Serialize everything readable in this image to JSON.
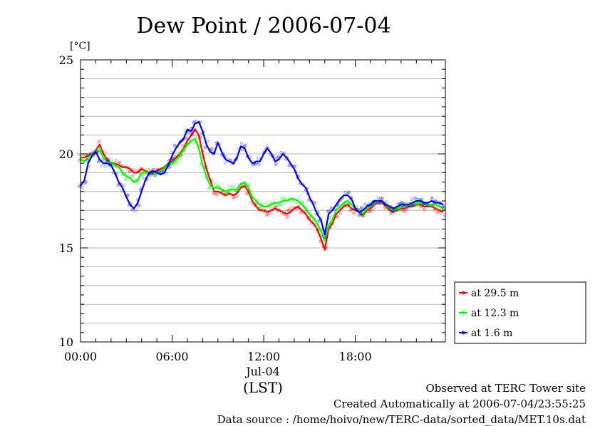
{
  "chart_data": {
    "type": "line",
    "title": "Dew Point / 2006-07-04",
    "ylabel": "[°C]",
    "xlabel": "(LST)",
    "date_label": "Jul-04",
    "ylim": [
      10,
      25
    ],
    "yticks": [
      10,
      15,
      20,
      25
    ],
    "xlim": [
      0,
      23.9
    ],
    "xticks": [
      {
        "hour": 0,
        "label": "00:00"
      },
      {
        "hour": 6,
        "label": "06:00"
      },
      {
        "hour": 12,
        "label": "12:00"
      },
      {
        "hour": 18,
        "label": "18:00"
      }
    ],
    "grid": true,
    "legend_position": "right",
    "x": [
      0,
      0.25,
      0.5,
      0.75,
      1,
      1.25,
      1.5,
      1.75,
      2,
      2.25,
      2.5,
      2.75,
      3,
      3.25,
      3.5,
      3.75,
      4,
      4.25,
      4.5,
      4.75,
      5,
      5.25,
      5.5,
      5.75,
      6,
      6.25,
      6.5,
      6.75,
      7,
      7.25,
      7.5,
      7.75,
      8,
      8.25,
      8.5,
      8.75,
      9,
      9.25,
      9.5,
      9.75,
      10,
      10.25,
      10.5,
      10.75,
      11,
      11.25,
      11.5,
      11.75,
      12,
      12.25,
      12.5,
      12.75,
      13,
      13.25,
      13.5,
      13.75,
      14,
      14.25,
      14.5,
      14.75,
      15,
      15.25,
      15.5,
      15.75,
      16,
      16.25,
      16.5,
      16.75,
      17,
      17.25,
      17.5,
      17.75,
      18,
      18.25,
      18.5,
      18.75,
      19,
      19.25,
      19.5,
      19.75,
      20,
      20.25,
      20.5,
      20.75,
      21,
      21.25,
      21.5,
      21.75,
      22,
      22.25,
      22.5,
      22.75,
      23,
      23.25,
      23.5,
      23.75
    ],
    "series": [
      {
        "name": "at 29.5 m",
        "color": "#ff0000",
        "values": [
          19.8,
          19.8,
          19.9,
          20.0,
          20.2,
          20.5,
          20.0,
          19.7,
          19.5,
          19.5,
          19.4,
          19.3,
          19.3,
          19.2,
          19.0,
          19.0,
          19.2,
          19.1,
          19.0,
          19.0,
          19.1,
          19.2,
          19.3,
          19.5,
          19.6,
          19.8,
          20.0,
          20.3,
          20.7,
          21.0,
          21.3,
          21.0,
          20.0,
          19.2,
          18.6,
          18.0,
          18.0,
          17.9,
          17.8,
          17.9,
          17.8,
          17.9,
          18.2,
          18.3,
          18.0,
          17.5,
          17.2,
          17.0,
          17.0,
          16.9,
          17.0,
          17.1,
          17.0,
          16.9,
          16.8,
          16.9,
          17.1,
          17.2,
          17.0,
          16.8,
          16.5,
          16.3,
          16.0,
          15.5,
          14.9,
          16.0,
          16.3,
          16.8,
          17.0,
          17.2,
          17.3,
          17.1,
          17.0,
          16.9,
          16.7,
          17.0,
          17.1,
          17.3,
          17.4,
          17.4,
          17.2,
          17.0,
          16.9,
          17.0,
          17.1,
          17.1,
          17.2,
          17.2,
          17.3,
          17.3,
          17.2,
          17.2,
          17.2,
          17.1,
          17.0,
          16.9
        ]
      },
      {
        "name": "at 12.3 m",
        "color": "#00ff00",
        "values": [
          19.7,
          19.6,
          19.8,
          20.0,
          20.0,
          20.2,
          19.8,
          19.6,
          19.5,
          19.4,
          19.3,
          19.0,
          18.8,
          18.7,
          18.5,
          18.6,
          19.0,
          19.0,
          19.0,
          18.9,
          19.0,
          19.1,
          19.2,
          19.4,
          19.5,
          19.7,
          19.9,
          20.2,
          20.5,
          20.7,
          20.8,
          20.3,
          19.4,
          18.8,
          18.3,
          18.2,
          18.2,
          18.1,
          18.0,
          18.1,
          18.1,
          18.1,
          18.4,
          18.5,
          18.2,
          17.7,
          17.5,
          17.3,
          17.2,
          17.2,
          17.3,
          17.4,
          17.4,
          17.5,
          17.5,
          17.6,
          17.6,
          17.5,
          17.3,
          17.1,
          16.8,
          16.6,
          16.3,
          15.9,
          15.4,
          16.2,
          16.5,
          17.0,
          17.2,
          17.4,
          17.5,
          17.3,
          17.1,
          17.0,
          16.8,
          17.1,
          17.2,
          17.4,
          17.5,
          17.5,
          17.3,
          17.1,
          17.0,
          17.1,
          17.2,
          17.2,
          17.3,
          17.3,
          17.4,
          17.4,
          17.3,
          17.3,
          17.3,
          17.3,
          17.2,
          17.1
        ]
      },
      {
        "name": "at 1.6 m",
        "color": "#0000ff",
        "values": [
          18.3,
          18.6,
          19.5,
          19.9,
          20.1,
          19.7,
          19.5,
          19.5,
          19.4,
          19.0,
          18.5,
          18.2,
          17.7,
          17.3,
          17.1,
          17.4,
          18.0,
          18.6,
          19.0,
          19.1,
          19.0,
          18.9,
          19.0,
          19.4,
          19.9,
          20.3,
          20.6,
          20.8,
          21.3,
          21.2,
          21.6,
          21.7,
          21.2,
          20.5,
          20.1,
          20.0,
          20.6,
          20.1,
          19.7,
          19.6,
          19.5,
          19.8,
          20.4,
          20.3,
          19.8,
          19.5,
          19.6,
          19.6,
          20.0,
          20.3,
          20.0,
          19.6,
          19.7,
          20.0,
          19.8,
          19.5,
          19.2,
          18.7,
          18.4,
          18.2,
          17.7,
          17.3,
          16.8,
          16.5,
          15.7,
          16.8,
          17.0,
          17.3,
          17.6,
          17.8,
          17.8,
          17.6,
          17.1,
          16.9,
          17.0,
          17.2,
          17.3,
          17.5,
          17.5,
          17.5,
          17.3,
          17.2,
          17.1,
          17.2,
          17.3,
          17.3,
          17.3,
          17.4,
          17.5,
          17.5,
          17.4,
          17.4,
          17.5,
          17.4,
          17.4,
          17.3
        ]
      }
    ]
  },
  "footer": {
    "line1": "Observed at TERC Tower site",
    "line2": "Created Automatically at 2006-07-04/23:55:25",
    "line3": "Data source : /home/hoivo/new/TERC-data/sorted_data/MET.10s.dat"
  }
}
